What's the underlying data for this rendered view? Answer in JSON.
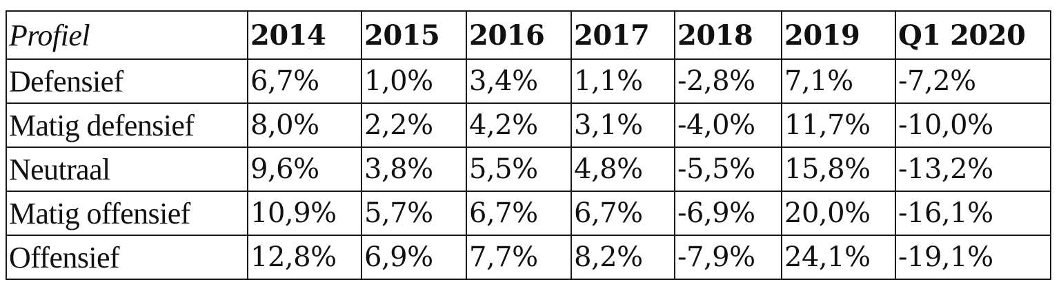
{
  "table": {
    "headers": [
      "Profiel",
      "2014",
      "2015",
      "2016",
      "2017",
      "2018",
      "2019",
      "Q1 2020"
    ],
    "rows": [
      [
        "Defensief",
        "6,7%",
        "1,0%",
        "3,4%",
        "1,1%",
        "-2,8%",
        "7,1%",
        "-7,2%"
      ],
      [
        "Matig defensief",
        "8,0%",
        "2,2%",
        "4,2%",
        "3,1%",
        "-4,0%",
        "11,7%",
        "-10,0%"
      ],
      [
        "Neutraal",
        "9,6%",
        "3,8%",
        "5,5%",
        "4,8%",
        "-5,5%",
        "15,8%",
        "-13,2%"
      ],
      [
        "Matig offensief",
        "10,9%",
        "5,7%",
        "6,7%",
        "6,7%",
        "-6,9%",
        "20,0%",
        "-16,1%"
      ],
      [
        "Offensief",
        "12,8%",
        "6,9%",
        "7,7%",
        "8,2%",
        "-7,9%",
        "24,1%",
        "-19,1%"
      ]
    ]
  }
}
